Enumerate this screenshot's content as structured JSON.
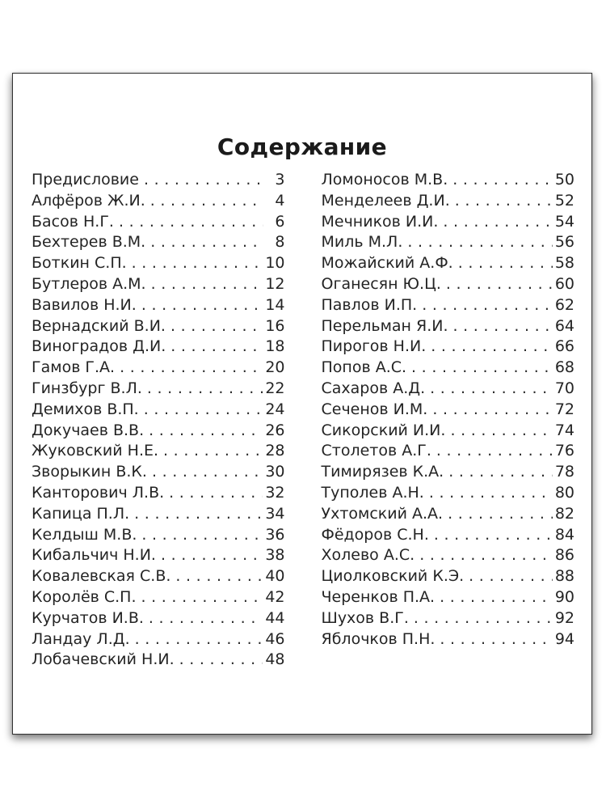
{
  "colors": {
    "page_background": "#ffffff",
    "card_background": "#ffffff",
    "card_border": "#333333",
    "text": "#242424"
  },
  "leader": {
    "char": ".",
    "repeat": 60
  },
  "toc": {
    "title": "Содержание",
    "left_column": [
      {
        "label": "Предисловие",
        "page": "3"
      },
      {
        "label": "Алфёров Ж.И.",
        "page": "4"
      },
      {
        "label": "Басов Н.Г.",
        "page": "6"
      },
      {
        "label": "Бехтерев В.М.",
        "page": "8"
      },
      {
        "label": "Боткин С.П.",
        "page": "10"
      },
      {
        "label": "Бутлеров А.М.",
        "page": "12"
      },
      {
        "label": "Вавилов Н.И.",
        "page": "14"
      },
      {
        "label": "Вернадский В.И.",
        "page": "16"
      },
      {
        "label": "Виноградов Д.И.",
        "page": "18"
      },
      {
        "label": "Гамов Г.А.",
        "page": "20"
      },
      {
        "label": "Гинзбург В.Л.",
        "page": "22"
      },
      {
        "label": "Демихов В.П.",
        "page": "24"
      },
      {
        "label": "Докучаев В.В.",
        "page": "26"
      },
      {
        "label": "Жуковский Н.Е.",
        "page": "28"
      },
      {
        "label": "Зворыкин В.К.",
        "page": "30"
      },
      {
        "label": "Канторович Л.В.",
        "page": "32"
      },
      {
        "label": "Капица П.Л.",
        "page": "34"
      },
      {
        "label": "Келдыш М.В.",
        "page": "36"
      },
      {
        "label": "Кибальчич Н.И.",
        "page": "38"
      },
      {
        "label": "Ковалевская С.В.",
        "page": "40"
      },
      {
        "label": "Королёв С.П.",
        "page": "42"
      },
      {
        "label": "Курчатов И.В.",
        "page": "44"
      },
      {
        "label": "Ландау Л.Д.",
        "page": "46"
      },
      {
        "label": "Лобачевский Н.И.",
        "page": "48"
      }
    ],
    "right_column": [
      {
        "label": "Ломоносов М.В.",
        "page": "50"
      },
      {
        "label": "Менделеев Д.И.",
        "page": "52"
      },
      {
        "label": "Мечников И.И.",
        "page": "54"
      },
      {
        "label": "Миль М.Л.",
        "page": "56"
      },
      {
        "label": "Можайский А.Ф.",
        "page": "58"
      },
      {
        "label": "Оганесян Ю.Ц.",
        "page": "60"
      },
      {
        "label": "Павлов И.П.",
        "page": "62"
      },
      {
        "label": "Перельман Я.И.",
        "page": "64"
      },
      {
        "label": "Пирогов Н.И.",
        "page": "66"
      },
      {
        "label": "Попов А.С.",
        "page": "68"
      },
      {
        "label": "Сахаров А.Д.",
        "page": "70"
      },
      {
        "label": "Сеченов И.М.",
        "page": "72"
      },
      {
        "label": "Сикорский И.И.",
        "page": "74"
      },
      {
        "label": "Столетов А.Г.",
        "page": "76"
      },
      {
        "label": "Тимирязев К.А.",
        "page": "78"
      },
      {
        "label": "Туполев А.Н.",
        "page": "80"
      },
      {
        "label": "Ухтомский А.А.",
        "page": "82"
      },
      {
        "label": "Фёдоров С.Н.",
        "page": "84"
      },
      {
        "label": "Холево А.С.",
        "page": "86"
      },
      {
        "label": "Циолковский К.Э.",
        "page": "88"
      },
      {
        "label": "Черенков П.А.",
        "page": "90"
      },
      {
        "label": "Шухов В.Г.",
        "page": "92"
      },
      {
        "label": "Яблочков П.Н.",
        "page": "94"
      }
    ]
  }
}
